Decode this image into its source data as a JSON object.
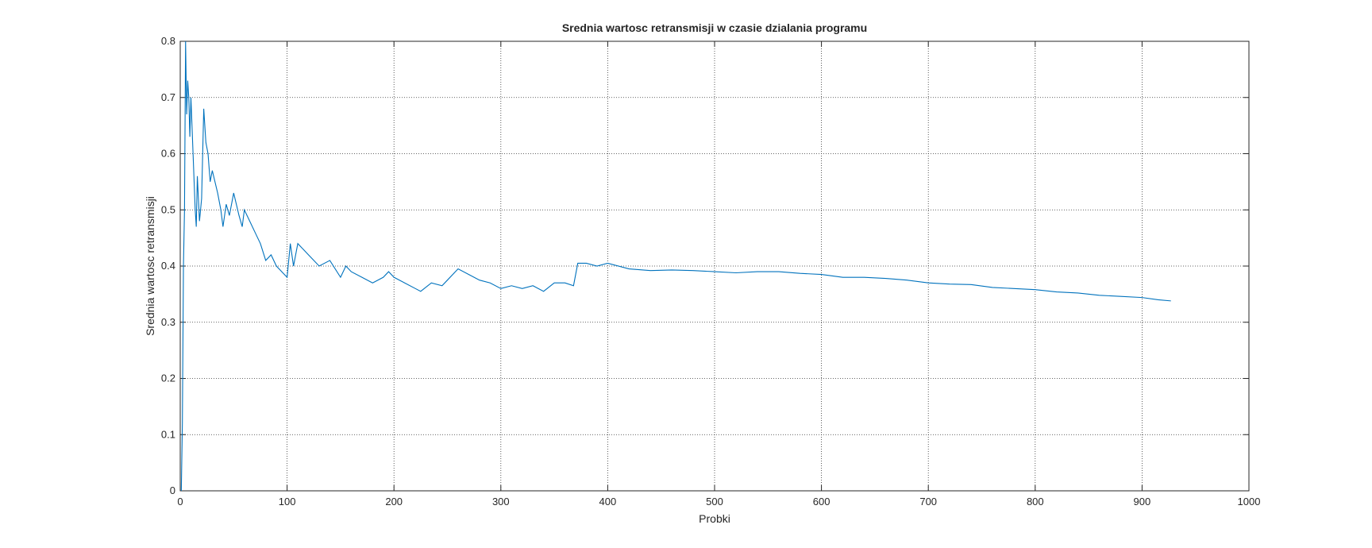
{
  "chart_data": {
    "type": "line",
    "title": "Srednia wartosc retransmisji w czasie dzialania programu",
    "x_label": "Probki",
    "y_label": "Srednia wartosc retransmisji",
    "x": [
      1,
      2,
      3,
      4,
      5,
      6,
      7,
      8,
      9,
      10,
      12,
      14,
      15,
      16,
      18,
      20,
      22,
      24,
      26,
      28,
      30,
      35,
      38,
      40,
      43,
      46,
      50,
      55,
      58,
      60,
      65,
      70,
      75,
      80,
      85,
      90,
      95,
      100,
      103,
      106,
      110,
      115,
      120,
      130,
      140,
      150,
      155,
      160,
      170,
      180,
      190,
      195,
      200,
      210,
      220,
      225,
      235,
      245,
      250,
      260,
      270,
      280,
      290,
      300,
      310,
      320,
      330,
      340,
      350,
      360,
      368,
      372,
      380,
      390,
      400,
      420,
      440,
      460,
      480,
      500,
      520,
      540,
      560,
      580,
      600,
      620,
      640,
      660,
      680,
      700,
      720,
      740,
      760,
      780,
      800,
      820,
      840,
      860,
      880,
      900,
      915,
      927
    ],
    "series": [
      {
        "color": "#0072bd",
        "values": [
          0,
          0.12,
          0.4,
          0.5,
          0.8,
          0.67,
          0.73,
          0.7,
          0.63,
          0.7,
          0.6,
          0.5,
          0.47,
          0.56,
          0.48,
          0.52,
          0.68,
          0.62,
          0.6,
          0.55,
          0.57,
          0.53,
          0.5,
          0.47,
          0.51,
          0.49,
          0.53,
          0.49,
          0.47,
          0.5,
          0.48,
          0.46,
          0.44,
          0.41,
          0.42,
          0.4,
          0.39,
          0.38,
          0.44,
          0.4,
          0.44,
          0.43,
          0.42,
          0.4,
          0.41,
          0.38,
          0.4,
          0.39,
          0.38,
          0.37,
          0.38,
          0.39,
          0.38,
          0.37,
          0.36,
          0.355,
          0.37,
          0.365,
          0.375,
          0.395,
          0.385,
          0.375,
          0.37,
          0.36,
          0.365,
          0.36,
          0.365,
          0.355,
          0.37,
          0.37,
          0.365,
          0.405,
          0.405,
          0.4,
          0.405,
          0.395,
          0.392,
          0.393,
          0.392,
          0.39,
          0.388,
          0.39,
          0.39,
          0.387,
          0.385,
          0.38,
          0.38,
          0.378,
          0.375,
          0.37,
          0.368,
          0.367,
          0.362,
          0.36,
          0.358,
          0.354,
          0.352,
          0.348,
          0.346,
          0.344,
          0.34,
          0.338
        ]
      }
    ],
    "xlim": [
      0,
      1000
    ],
    "xticks": [
      0,
      100,
      200,
      300,
      400,
      500,
      600,
      700,
      800,
      900,
      1000
    ],
    "ylim": [
      0,
      0.8
    ],
    "yticks": [
      0,
      0.1,
      0.2,
      0.3,
      0.4,
      0.5,
      0.6,
      0.7,
      0.8
    ],
    "grid": true
  }
}
